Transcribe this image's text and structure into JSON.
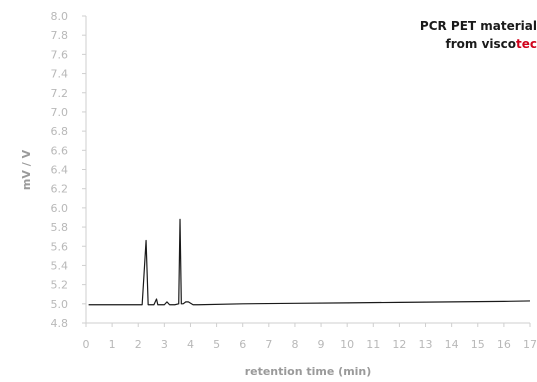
{
  "chart_data": {
    "type": "line",
    "title": "",
    "xlabel": "retention time (min)",
    "ylabel": "mV / V",
    "xlim": [
      0,
      17
    ],
    "ylim": [
      4.8,
      8.0
    ],
    "x_ticks": [
      "0",
      "1",
      "2",
      "3",
      "4",
      "5",
      "6",
      "7",
      "8",
      "9",
      "10",
      "11",
      "12",
      "13",
      "14",
      "15",
      "16",
      "17"
    ],
    "y_ticks": [
      "4.8",
      "5.0",
      "5.2",
      "5.4",
      "5.6",
      "5.8",
      "6.0",
      "6.2",
      "6.4",
      "6.6",
      "6.8",
      "7.0",
      "7.2",
      "7.4",
      "7.6",
      "7.8",
      "8.0"
    ],
    "grid": false,
    "series": [
      {
        "color": "#1a1a1a",
        "x": [
          0.1,
          2.15,
          2.22,
          2.3,
          2.38,
          2.6,
          2.7,
          2.75,
          2.8,
          3.0,
          3.1,
          3.2,
          3.4,
          3.55,
          3.6,
          3.65,
          3.72,
          3.82,
          3.92,
          4.1,
          4.3,
          6,
          8,
          10,
          12,
          14,
          16,
          17
        ],
        "y": [
          4.99,
          4.99,
          5.3,
          5.66,
          4.99,
          4.99,
          5.05,
          4.99,
          4.99,
          4.99,
          5.02,
          4.99,
          4.99,
          5.0,
          5.88,
          5.0,
          5.0,
          5.02,
          5.02,
          4.99,
          4.99,
          5.0,
          5.005,
          5.01,
          5.015,
          5.02,
          5.025,
          5.03
        ]
      }
    ]
  },
  "annotation": {
    "line1": "PCR PET material",
    "line2_prefix": "from visco",
    "line2_highlight": "tec",
    "highlight_color": "#d0021b"
  }
}
